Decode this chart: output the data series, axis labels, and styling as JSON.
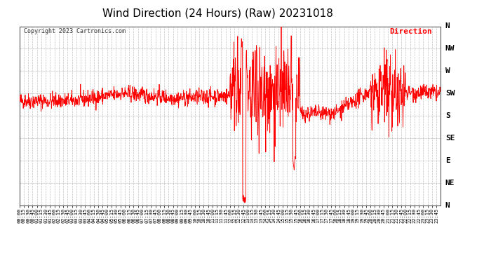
{
  "title": "Wind Direction (24 Hours) (Raw) 20231018",
  "copyright": "Copyright 2023 Cartronics.com",
  "legend_label": "Direction",
  "legend_color": "#ff0000",
  "line_color": "#ff0000",
  "background_color": "#ffffff",
  "grid_color": "#b0b0b0",
  "title_fontsize": 11,
  "ytick_labels": [
    "N",
    "NW",
    "W",
    "SW",
    "S",
    "SE",
    "E",
    "NE",
    "N"
  ],
  "ytick_values": [
    360,
    315,
    270,
    225,
    180,
    135,
    90,
    45,
    0
  ],
  "ylim": [
    0,
    360
  ],
  "xtick_interval_minutes": 15,
  "total_minutes": 1440,
  "seed": 42
}
